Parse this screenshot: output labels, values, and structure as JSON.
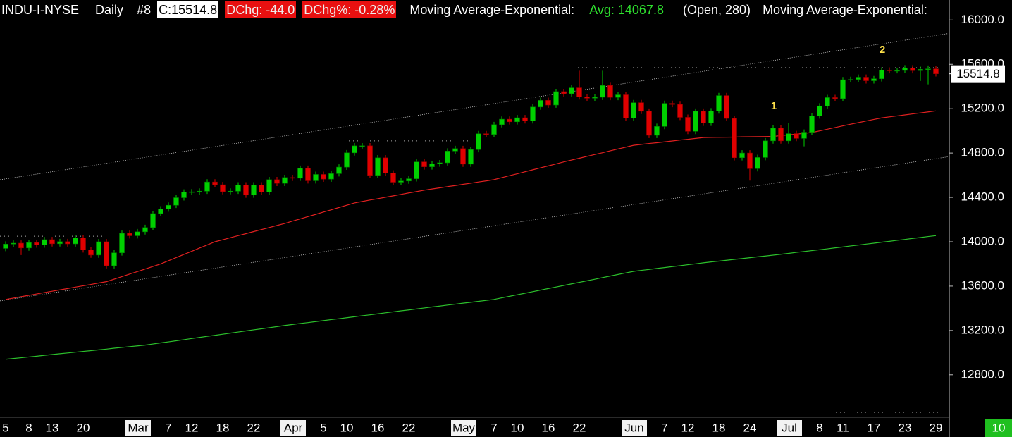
{
  "chart_data": {
    "type": "candlestick",
    "header": {
      "symbol": "INDU-I-NYSE",
      "period": "Daily",
      "chart_no": "#8",
      "close_label": "C:15514.8",
      "change_label": "DChg: -44.0",
      "change_pct_label": "DChg%: -0.28%",
      "study_label": "Moving Average-Exponential:",
      "avg_label": "Avg: 14067.8",
      "study_params": "(Open, 280)",
      "study2_label": "Moving Average-Exponential:"
    },
    "price_label": "15514.8",
    "corner_label": "10",
    "annotations": [
      "1",
      "2"
    ],
    "categories": [
      "5",
      null,
      null,
      "8",
      null,
      null,
      "13",
      null,
      null,
      null,
      "20",
      null,
      null,
      null,
      null,
      null,
      null,
      "Mar",
      null,
      null,
      null,
      "7",
      null,
      null,
      "12",
      null,
      null,
      null,
      "18",
      null,
      null,
      null,
      "22",
      null,
      null,
      null,
      null,
      "Apr",
      null,
      null,
      null,
      "5",
      null,
      null,
      "10",
      null,
      null,
      null,
      "16",
      null,
      null,
      null,
      "22",
      null,
      null,
      null,
      null,
      null,
      null,
      "May",
      null,
      null,
      null,
      "7",
      null,
      null,
      "10",
      null,
      null,
      null,
      "16",
      null,
      null,
      null,
      "22",
      null,
      null,
      null,
      null,
      null,
      null,
      "Jun",
      null,
      null,
      null,
      "7",
      null,
      null,
      "12",
      null,
      null,
      null,
      "18",
      null,
      null,
      null,
      "24",
      null,
      null,
      null,
      null,
      "Jul",
      null,
      null,
      null,
      "8",
      null,
      null,
      "11",
      null,
      null,
      null,
      "17",
      null,
      null,
      null,
      "23",
      null,
      null,
      null,
      "29"
    ],
    "open": [
      13940,
      13979,
      13987,
      13944,
      13993,
      13971,
      14019,
      13982,
      14001,
      13981,
      14035,
      13927,
      13880,
      14000,
      13784,
      13900,
      14076,
      14054,
      14090,
      14128,
      14254,
      14296,
      14329,
      14397,
      14448,
      14450,
      14456,
      14539,
      14514,
      14452,
      14456,
      14512,
      14421,
      14512,
      14448,
      14560,
      14527,
      14579,
      14573,
      14662,
      14550,
      14607,
      14565,
      14614,
      14673,
      14802,
      14865,
      14865,
      14599,
      14757,
      14619,
      14537,
      14548,
      14568,
      14720,
      14676,
      14701,
      14712,
      14818,
      14840,
      14700,
      14831,
      14974,
      14968,
      15056,
      15105,
      15082,
      15118,
      15091,
      15215,
      15275,
      15233,
      15354,
      15335,
      15388,
      15307,
      15295,
      15303,
      15409,
      15302,
      15325,
      15116,
      15254,
      15177,
      14960,
      15040,
      15248,
      15238,
      15122,
      14996,
      15177,
      15070,
      15180,
      15318,
      15112,
      14758,
      14800,
      14659,
      14760,
      14910,
      15024,
      14910,
      14975,
      14932,
      14988,
      15135,
      15225,
      15300,
      15291,
      15461,
      15464,
      15484,
      15452,
      15470,
      15548,
      15543,
      15545,
      15568,
      15543,
      15555,
      15559
    ],
    "high": [
      14004,
      14012,
      14012,
      14018,
      14018,
      14044,
      14044,
      14026,
      14026,
      14060,
      14060,
      13952,
      14025,
      14025,
      13925,
      14101,
      14101,
      14115,
      14153,
      14279,
      14321,
      14354,
      14422,
      14473,
      14475,
      14481,
      14564,
      14564,
      14539,
      14481,
      14537,
      14537,
      14537,
      14537,
      14585,
      14585,
      14604,
      14604,
      14687,
      14687,
      14632,
      14632,
      14639,
      14698,
      14827,
      14890,
      14890,
      14890,
      14782,
      14782,
      14644,
      14573,
      14593,
      14745,
      14745,
      14726,
      14737,
      14843,
      14865,
      14865,
      14856,
      14999,
      14999,
      15081,
      15130,
      15130,
      15143,
      15143,
      15240,
      15300,
      15300,
      15379,
      15379,
      15413,
      15542,
      15332,
      15328,
      15542,
      15434,
      15350,
      15350,
      15279,
      15279,
      15202,
      15065,
      15273,
      15273,
      15263,
      15147,
      15202,
      15202,
      15205,
      15343,
      15343,
      15137,
      14825,
      14825,
      14785,
      14935,
      15049,
      15049,
      15074,
      15000,
      15013,
      15160,
      15250,
      15325,
      15325,
      15486,
      15489,
      15509,
      15509,
      15495,
      15573,
      15573,
      15570,
      15593,
      15593,
      15580,
      15590,
      15584
    ],
    "low": [
      13915,
      13954,
      13880,
      13919,
      13946,
      13946,
      13957,
      13957,
      13956,
      13956,
      13902,
      13855,
      13855,
      13759,
      13759,
      13875,
      14029,
      14029,
      14065,
      14103,
      14229,
      14271,
      14304,
      14372,
      14423,
      14425,
      14431,
      14489,
      14427,
      14427,
      14431,
      14396,
      14396,
      14423,
      14423,
      14502,
      14502,
      14548,
      14548,
      14525,
      14525,
      14540,
      14540,
      14589,
      14648,
      14777,
      14840,
      14574,
      14574,
      14594,
      14512,
      14512,
      14523,
      14543,
      14651,
      14651,
      14676,
      14687,
      14793,
      14675,
      14675,
      14806,
      14943,
      14943,
      15031,
      15057,
      15057,
      15066,
      15066,
      15190,
      15208,
      15208,
      15310,
      15310,
      15282,
      15270,
      15270,
      15278,
      15277,
      15277,
      15091,
      15091,
      15152,
      14935,
      14935,
      15015,
      15213,
      15097,
      14971,
      14971,
      15045,
      15045,
      15155,
      15087,
      14733,
      14733,
      14551,
      14634,
      14735,
      14885,
      14885,
      14885,
      14907,
      14860,
      14963,
      15110,
      15200,
      15266,
      15266,
      15436,
      15439,
      15427,
      15427,
      15445,
      15518,
      15518,
      15520,
      15518,
      15450,
      15420,
      15490
    ],
    "close": [
      13979,
      13987,
      13944,
      13993,
      13971,
      14019,
      13982,
      14001,
      13981,
      14035,
      13927,
      13880,
      14000,
      13784,
      13900,
      14076,
      14054,
      14090,
      14128,
      14254,
      14296,
      14329,
      14397,
      14448,
      14450,
      14456,
      14539,
      14514,
      14452,
      14456,
      14512,
      14421,
      14512,
      14448,
      14560,
      14527,
      14579,
      14573,
      14662,
      14550,
      14607,
      14565,
      14614,
      14673,
      14802,
      14865,
      14865,
      14599,
      14757,
      14619,
      14537,
      14548,
      14568,
      14720,
      14676,
      14701,
      14712,
      14818,
      14840,
      14700,
      14831,
      14974,
      14968,
      15056,
      15105,
      15082,
      15118,
      15091,
      15215,
      15275,
      15233,
      15354,
      15335,
      15388,
      15307,
      15295,
      15303,
      15409,
      15302,
      15325,
      15116,
      15254,
      15177,
      14960,
      15040,
      15248,
      15238,
      15122,
      14996,
      15177,
      15070,
      15180,
      15318,
      15112,
      14758,
      14800,
      14659,
      14760,
      14910,
      15024,
      14910,
      14975,
      14932,
      14988,
      15135,
      15225,
      15300,
      15291,
      15461,
      15464,
      15484,
      15452,
      15470,
      15548,
      15543,
      15545,
      15568,
      15543,
      15555,
      15559,
      15514.8
    ],
    "up_color": "#00d000",
    "down_color": "#e00000",
    "moving_averages": [
      {
        "color": "#e02020",
        "values": [
          13480,
          13492,
          13505,
          13517,
          13529,
          13542,
          13554,
          13566,
          13578,
          13591,
          13603,
          13615,
          13628,
          13640,
          13663,
          13686,
          13709,
          13731,
          13754,
          13777,
          13800,
          13829,
          13857,
          13886,
          13914,
          13943,
          13971,
          14000,
          14018,
          14037,
          14055,
          14073,
          14092,
          14110,
          14128,
          14147,
          14165,
          14186,
          14206,
          14227,
          14247,
          14268,
          14288,
          14309,
          14329,
          14350,
          14363,
          14376,
          14388,
          14401,
          14414,
          14427,
          14440,
          14452,
          14465,
          14476,
          14486,
          14497,
          14507,
          14518,
          14528,
          14539,
          14549,
          14560,
          14578,
          14596,
          14613,
          14631,
          14649,
          14667,
          14684,
          14702,
          14720,
          14737,
          14753,
          14770,
          14787,
          14803,
          14820,
          14837,
          14853,
          14870,
          14878,
          14886,
          14893,
          14901,
          14909,
          14917,
          14924,
          14932,
          14940,
          14941,
          14942,
          14943,
          14944,
          14946,
          14947,
          14948,
          14949,
          14950,
          14957,
          14964,
          14971,
          14978,
          14985,
          15000,
          15015,
          15030,
          15045,
          15060,
          15074,
          15089,
          15103,
          15117,
          15126,
          15135,
          15144,
          15153,
          15162,
          15171,
          15180
        ]
      },
      {
        "color": "#2cc02c",
        "values": [
          12940,
          12947,
          12954,
          12961,
          12968,
          12976,
          12983,
          12990,
          12997,
          13004,
          13011,
          13018,
          13025,
          13032,
          13040,
          13047,
          13054,
          13061,
          13068,
          13078,
          13088,
          13097,
          13107,
          13117,
          13127,
          13137,
          13147,
          13156,
          13166,
          13176,
          13186,
          13196,
          13206,
          13215,
          13225,
          13235,
          13245,
          13254,
          13263,
          13271,
          13280,
          13289,
          13298,
          13306,
          13315,
          13324,
          13333,
          13341,
          13350,
          13359,
          13368,
          13377,
          13385,
          13394,
          13403,
          13412,
          13420,
          13429,
          13437,
          13446,
          13454,
          13463,
          13471,
          13480,
          13494,
          13508,
          13522,
          13536,
          13550,
          13564,
          13578,
          13592,
          13606,
          13620,
          13634,
          13648,
          13662,
          13677,
          13691,
          13705,
          13719,
          13733,
          13742,
          13750,
          13759,
          13767,
          13776,
          13784,
          13793,
          13801,
          13810,
          13818,
          13825,
          13833,
          13841,
          13848,
          13856,
          13864,
          13871,
          13879,
          13887,
          13895,
          13904,
          13912,
          13920,
          13928,
          13936,
          13945,
          13953,
          13962,
          13970,
          13979,
          13987,
          13996,
          14004,
          14013,
          14021,
          14030,
          14038,
          14047,
          14055
        ]
      }
    ],
    "channel": [
      [
        14559,
        15879
      ],
      [
        13467,
        14768
      ]
    ],
    "levels": [
      14050,
      14910,
      15570
    ],
    "ylim": [
      12430,
      16180
    ],
    "yticks": [
      {
        "value": 12800,
        "label": "12800.0"
      },
      {
        "value": 13200,
        "label": "13200.0"
      },
      {
        "value": 13600,
        "label": "13600.0"
      },
      {
        "value": 14000,
        "label": "14000.0"
      },
      {
        "value": 14400,
        "label": "14400.0"
      },
      {
        "value": 14800,
        "label": "14800.0"
      },
      {
        "value": 15200,
        "label": "15200.0"
      },
      {
        "value": 15600,
        "label": "15600.0"
      },
      {
        "value": 16000,
        "label": "16000.0"
      }
    ]
  }
}
